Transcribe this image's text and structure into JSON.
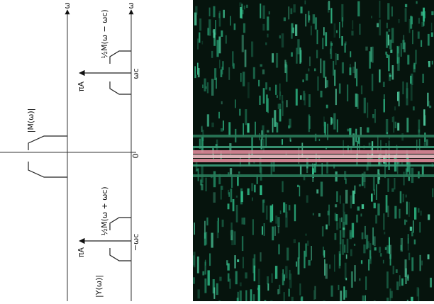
{
  "diagram": {
    "axis_label_top": "ω",
    "axis_label_bottom": "ω",
    "message_spectrum": "|M(ω)|",
    "zero": "0",
    "upper_band": "½M(ω − ωc)",
    "upper_impulse": "πA",
    "carrier_pos": "ωc",
    "lower_band": "½M(ω + ωc)",
    "lower_impulse": "πA",
    "carrier_neg": "−ωc",
    "output_spectrum": "|Y(ω)|"
  }
}
